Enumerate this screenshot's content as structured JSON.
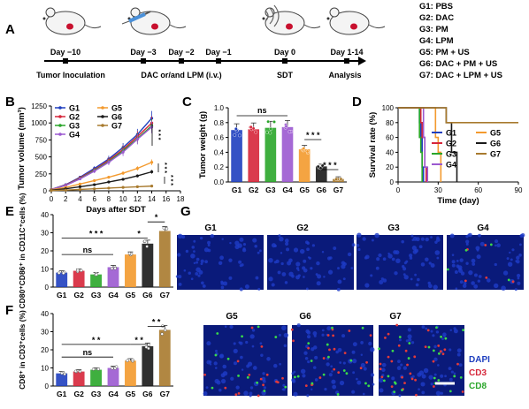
{
  "panel_labels": [
    "A",
    "B",
    "C",
    "D",
    "E",
    "F",
    "G"
  ],
  "timeline": {
    "days": [
      "Day −10",
      "Day −3",
      "Day −2",
      "Day −1",
      "Day 0",
      "Day 1-14"
    ],
    "steps": [
      "Tumor Inoculation",
      "DAC or/and LPM (i.v.)",
      "SDT",
      "Analysis"
    ]
  },
  "groups_legend": [
    "G1: PBS",
    "G2: DAC",
    "G3: PM",
    "G4: LPM",
    "G5: PM + US",
    "G6: DAC + PM + US",
    "G7: DAC + LPM + US"
  ],
  "colors": {
    "G1": "#1f3fbf",
    "G2": "#d6263a",
    "G3": "#2aa62a",
    "G4": "#9b59d0",
    "G5": "#f39a2e",
    "G6": "#1a1a1a",
    "G7": "#a87a2e"
  },
  "chart_data": [
    {
      "id": "B",
      "type": "line",
      "ylabel": "Tumor volume (mm³)",
      "xlabel": "Days after SDT",
      "x": [
        0,
        2,
        4,
        6,
        8,
        10,
        12,
        14
      ],
      "xticks": [
        "0",
        "2",
        "4",
        "6",
        "8",
        "10",
        "12",
        "14",
        "16",
        "18"
      ],
      "yticks": [
        "0",
        "250",
        "500",
        "750",
        "1000",
        "1250"
      ],
      "xlim": [
        0,
        18
      ],
      "ylim": [
        0,
        1250
      ],
      "series": [
        {
          "name": "G1",
          "values": [
            20,
            90,
            200,
            330,
            470,
            640,
            830,
            1070
          ]
        },
        {
          "name": "G2",
          "values": [
            20,
            85,
            190,
            310,
            450,
            610,
            800,
            1000
          ]
        },
        {
          "name": "G3",
          "values": [
            20,
            80,
            180,
            300,
            430,
            590,
            770,
            960
          ]
        },
        {
          "name": "G4",
          "values": [
            20,
            80,
            175,
            290,
            420,
            570,
            760,
            940
          ]
        },
        {
          "name": "G5",
          "values": [
            15,
            50,
            100,
            150,
            200,
            260,
            330,
            420
          ]
        },
        {
          "name": "G6",
          "values": [
            10,
            30,
            60,
            90,
            130,
            170,
            220,
            280
          ]
        },
        {
          "name": "G7",
          "values": [
            5,
            10,
            20,
            30,
            40,
            50,
            60,
            70
          ]
        }
      ],
      "annotations": [
        "* * *",
        "* * *",
        "* * *"
      ]
    },
    {
      "id": "C",
      "type": "bar",
      "ylabel": "Tumor weight (g)",
      "categories": [
        "G1",
        "G2",
        "G3",
        "G4",
        "G5",
        "G6",
        "G7"
      ],
      "values": [
        0.7,
        0.71,
        0.73,
        0.74,
        0.44,
        0.21,
        0.04
      ],
      "yticks": [
        "0.0",
        "0.2",
        "0.4",
        "0.6",
        "0.8",
        "1.0"
      ],
      "ylim": [
        0,
        1.0
      ],
      "annotations": [
        "ns",
        "* * *",
        "* * *"
      ]
    },
    {
      "id": "D",
      "type": "line",
      "ylabel": "Survival rate (%)",
      "xlabel": "Time (day)",
      "xticks": [
        "0",
        "30",
        "60",
        "90"
      ],
      "yticks": [
        "0",
        "20",
        "40",
        "60",
        "80",
        "100"
      ],
      "xlim": [
        0,
        90
      ],
      "ylim": [
        0,
        100
      ],
      "series": [
        {
          "name": "G1",
          "points": [
            [
              0,
              100
            ],
            [
              15,
              100
            ],
            [
              16,
              80
            ],
            [
              17,
              60
            ],
            [
              18,
              20
            ],
            [
              19,
              0
            ]
          ]
        },
        {
          "name": "G2",
          "points": [
            [
              0,
              100
            ],
            [
              16,
              100
            ],
            [
              17,
              80
            ],
            [
              18,
              60
            ],
            [
              20,
              20
            ],
            [
              21,
              0
            ]
          ]
        },
        {
          "name": "G3",
          "points": [
            [
              0,
              100
            ],
            [
              14,
              100
            ],
            [
              16,
              60
            ],
            [
              17,
              40
            ],
            [
              18,
              0
            ]
          ]
        },
        {
          "name": "G4",
          "points": [
            [
              0,
              100
            ],
            [
              17,
              100
            ],
            [
              19,
              60
            ],
            [
              20,
              20
            ],
            [
              22,
              0
            ]
          ]
        },
        {
          "name": "G5",
          "points": [
            [
              0,
              100
            ],
            [
              26,
              100
            ],
            [
              28,
              60
            ],
            [
              30,
              40
            ],
            [
              32,
              0
            ]
          ]
        },
        {
          "name": "G6",
          "points": [
            [
              0,
              100
            ],
            [
              33,
              100
            ],
            [
              36,
              80
            ],
            [
              40,
              40
            ],
            [
              44,
              0
            ]
          ]
        },
        {
          "name": "G7",
          "points": [
            [
              0,
              100
            ],
            [
              34,
              100
            ],
            [
              36,
              80
            ],
            [
              90,
              80
            ]
          ]
        }
      ]
    },
    {
      "id": "E",
      "type": "bar",
      "ylabel": "CD80⁺CD86⁺ in CD11C⁺cells (%)",
      "categories": [
        "G1",
        "G2",
        "G3",
        "G4",
        "G5",
        "G6",
        "G7"
      ],
      "values": [
        8,
        9,
        7,
        11,
        18,
        24,
        31
      ],
      "yticks": [
        "0",
        "10",
        "20",
        "30",
        "40"
      ],
      "ylim": [
        0,
        40
      ],
      "annotations": [
        "* * *",
        "ns",
        "*",
        "*"
      ]
    },
    {
      "id": "F",
      "type": "bar",
      "ylabel": "CD8⁺ in CD3⁺cells (%)",
      "categories": [
        "G1",
        "G2",
        "G3",
        "G4",
        "G5",
        "G6",
        "G7"
      ],
      "values": [
        7,
        8,
        9,
        10,
        14,
        22,
        31
      ],
      "yticks": [
        "0",
        "10",
        "20",
        "30",
        "40"
      ],
      "ylim": [
        0,
        40
      ],
      "annotations": [
        "* *",
        "ns",
        "* *",
        "* *"
      ]
    }
  ],
  "images_G": {
    "titles": [
      "G1",
      "G2",
      "G3",
      "G4",
      "G5",
      "G6",
      "G7"
    ],
    "legend": [
      "DAPI",
      "CD3",
      "CD8"
    ]
  }
}
